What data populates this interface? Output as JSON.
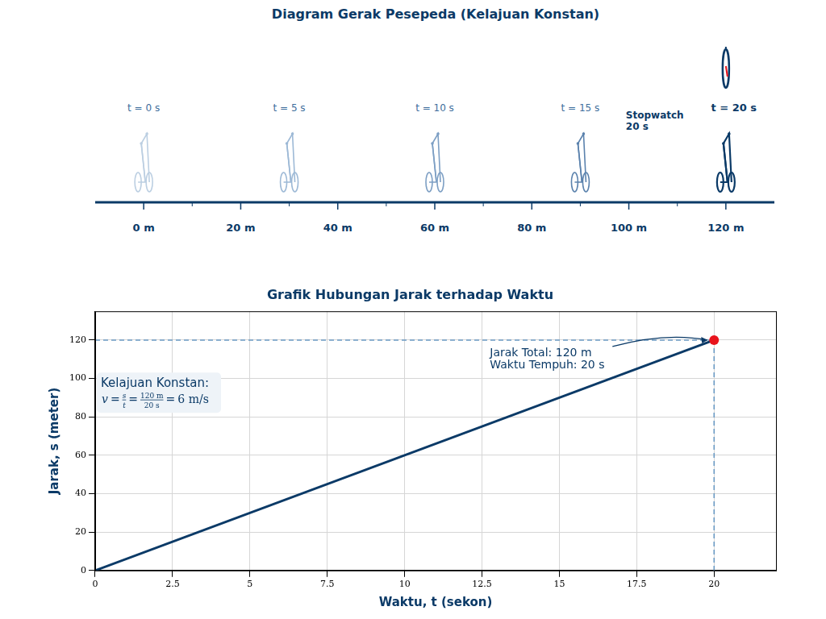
{
  "diagram": {
    "title": "Diagram Gerak Pesepeda (Kelajuan Konstan)",
    "axis": {
      "xlim": [
        -10,
        130
      ],
      "ticks": [
        {
          "value": 0,
          "label": "0 m"
        },
        {
          "value": 20,
          "label": "20 m"
        },
        {
          "value": 40,
          "label": "40 m"
        },
        {
          "value": 60,
          "label": "60 m"
        },
        {
          "value": 80,
          "label": "80 m"
        },
        {
          "value": 100,
          "label": "100 m"
        },
        {
          "value": 120,
          "label": "120 m"
        }
      ]
    },
    "riders": [
      {
        "label": "t = 0 s",
        "position": 0
      },
      {
        "label": "t = 5 s",
        "position": 30
      },
      {
        "label": "t = 10 s",
        "position": 60
      },
      {
        "label": "t = 15 s",
        "position": 90
      },
      {
        "label": "t = 20 s",
        "position": 120
      }
    ],
    "stopwatch": {
      "label": [
        "Stopwatch",
        "20 s"
      ]
    }
  },
  "chart_data": {
    "type": "line",
    "title": "Grafik Hubungan Jarak terhadap Waktu",
    "x_label": "Waktu, t (sekon)",
    "y_label": "Jarak, s (meter)",
    "x": [
      0,
      20
    ],
    "values": [
      0,
      120
    ],
    "color": "#0b3a67",
    "xlim": [
      0,
      22
    ],
    "xticks": [
      0,
      2.5,
      5,
      7.5,
      10,
      12.5,
      15,
      17.5,
      20
    ],
    "ylim": [
      0,
      135
    ],
    "yticks": [
      0,
      20,
      40,
      60,
      80,
      100,
      120
    ],
    "grid": true,
    "annotation": [
      "Jarak Total: 120 m",
      "Waktu Tempuh: 20 s"
    ],
    "info_box": {
      "title": "Kelajuan Konstan:",
      "formula": {
        "lhs": "v",
        "fraction1": [
          "s",
          "t"
        ],
        "fraction2": [
          "120 m",
          "20 s"
        ],
        "result": "6 m/s"
      }
    }
  }
}
